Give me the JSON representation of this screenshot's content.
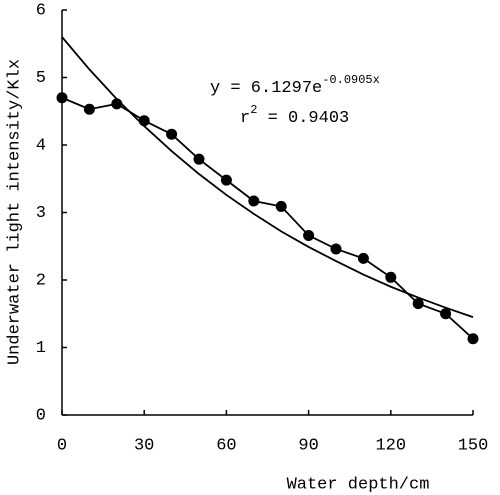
{
  "chart_data": {
    "type": "line",
    "x_label": "Water depth/cm",
    "y_label": "Underwater light intensity/Klx",
    "annotation": {
      "equation": "y = 6.1297e",
      "exponent": "-0.0905x",
      "r": "r",
      "r_power": "2",
      "r_value": " = 0.9403"
    },
    "x": [
      0,
      10,
      20,
      30,
      40,
      50,
      60,
      70,
      80,
      90,
      100,
      110,
      120,
      130,
      140,
      150
    ],
    "series": [
      {
        "color": "#000000",
        "markers": true,
        "values": [
          4.7,
          4.53,
          4.61,
          4.36,
          4.16,
          3.79,
          3.48,
          3.17,
          3.09,
          2.66,
          2.46,
          2.32,
          2.04,
          1.65,
          1.5,
          1.13
        ]
      },
      {
        "color": "#000000",
        "markers": false,
        "values": [
          5.6,
          5.12,
          4.68,
          4.28,
          3.91,
          3.57,
          3.26,
          2.98,
          2.72,
          2.49,
          2.28,
          2.08,
          1.9,
          1.74,
          1.59,
          1.45
        ]
      }
    ],
    "xlim": [
      0,
      150
    ],
    "xticks": [
      0,
      30,
      60,
      90,
      120,
      150
    ],
    "ylim": [
      0,
      6
    ],
    "yticks": [
      0,
      1,
      2,
      3,
      4,
      5,
      6
    ],
    "grid": false
  }
}
